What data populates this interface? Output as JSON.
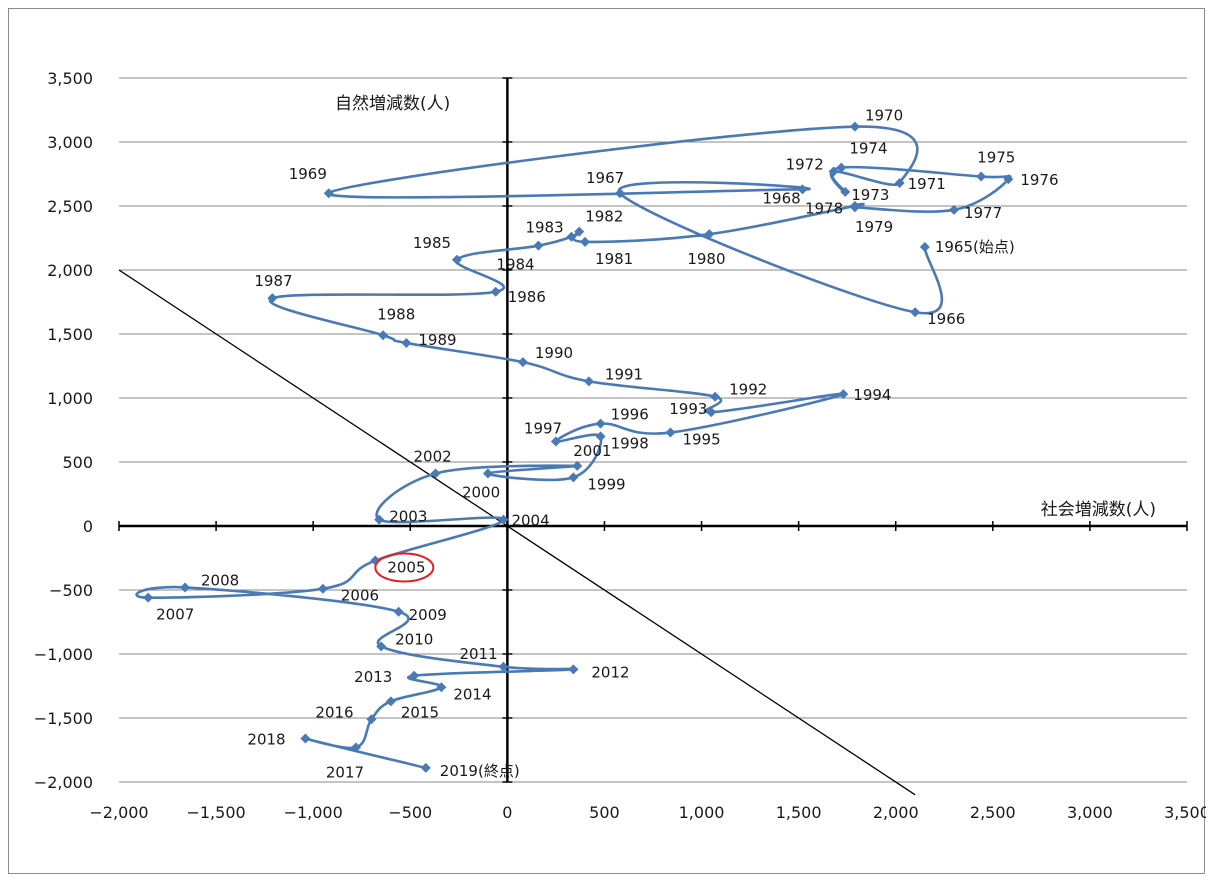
{
  "chart_data": {
    "type": "line",
    "xlabel": "社会増減数(人)",
    "ylabel": "自然増減数(人)",
    "xlim": [
      -2000,
      3500
    ],
    "ylim": [
      -2000,
      3500
    ],
    "x_ticks": [
      "−2,000",
      "−1,500",
      "−1,000",
      "−500",
      "0",
      "500",
      "1,000",
      "1,500",
      "2,000",
      "2,500",
      "3,000",
      "3,500"
    ],
    "y_ticks": [
      "3,500",
      "3,000",
      "2,500",
      "2,000",
      "1,500",
      "1,000",
      "500",
      "0",
      "−500",
      "−1,000",
      "−1,500",
      "−2,000"
    ],
    "grid": "horizontal",
    "line_color": "#4a7ab5",
    "reference_line": {
      "from": [
        -2000,
        2000
      ],
      "to": [
        2100,
        -2100
      ],
      "color": "#000000"
    },
    "highlight": {
      "label": "2005",
      "color": "#e02020"
    },
    "points": [
      {
        "label": "1965(始点)",
        "x": 2150,
        "y": 2180
      },
      {
        "label": "1966",
        "x": 2100,
        "y": 1670
      },
      {
        "label": "1967",
        "x": 580,
        "y": 2600
      },
      {
        "label": "1968",
        "x": 1520,
        "y": 2630
      },
      {
        "label": "1969",
        "x": -920,
        "y": 2600
      },
      {
        "label": "1970",
        "x": 1790,
        "y": 3120
      },
      {
        "label": "1971",
        "x": 2020,
        "y": 2680
      },
      {
        "label": "1972",
        "x": 1680,
        "y": 2770
      },
      {
        "label": "1973",
        "x": 1740,
        "y": 2610
      },
      {
        "label": "1974",
        "x": 1720,
        "y": 2800
      },
      {
        "label": "1975",
        "x": 2440,
        "y": 2730
      },
      {
        "label": "1976",
        "x": 2580,
        "y": 2710
      },
      {
        "label": "1977",
        "x": 2300,
        "y": 2470
      },
      {
        "label": "1978",
        "x": 1790,
        "y": 2490
      },
      {
        "label": "1979",
        "x": 1790,
        "y": 2500
      },
      {
        "label": "1980",
        "x": 1040,
        "y": 2280
      },
      {
        "label": "1981",
        "x": 400,
        "y": 2220
      },
      {
        "label": "1982",
        "x": 370,
        "y": 2300
      },
      {
        "label": "1983",
        "x": 330,
        "y": 2260
      },
      {
        "label": "1984",
        "x": 160,
        "y": 2190
      },
      {
        "label": "1985",
        "x": -260,
        "y": 2080
      },
      {
        "label": "1986",
        "x": -60,
        "y": 1830
      },
      {
        "label": "1987",
        "x": -1210,
        "y": 1780
      },
      {
        "label": "1988",
        "x": -640,
        "y": 1490
      },
      {
        "label": "1989",
        "x": -520,
        "y": 1430
      },
      {
        "label": "1990",
        "x": 80,
        "y": 1280
      },
      {
        "label": "1991",
        "x": 420,
        "y": 1130
      },
      {
        "label": "1992",
        "x": 1070,
        "y": 1010
      },
      {
        "label": "1993",
        "x": 1050,
        "y": 890
      },
      {
        "label": "1994",
        "x": 1730,
        "y": 1030
      },
      {
        "label": "1995",
        "x": 840,
        "y": 730
      },
      {
        "label": "1996",
        "x": 480,
        "y": 800
      },
      {
        "label": "1997",
        "x": 250,
        "y": 660
      },
      {
        "label": "1998",
        "x": 480,
        "y": 700
      },
      {
        "label": "1999",
        "x": 340,
        "y": 380
      },
      {
        "label": "2000",
        "x": -100,
        "y": 410
      },
      {
        "label": "2001",
        "x": 360,
        "y": 470
      },
      {
        "label": "2002",
        "x": -370,
        "y": 410
      },
      {
        "label": "2003",
        "x": -660,
        "y": 50
      },
      {
        "label": "2004",
        "x": -20,
        "y": 50
      },
      {
        "label": "2005",
        "x": -680,
        "y": -270
      },
      {
        "label": "2006",
        "x": -950,
        "y": -490
      },
      {
        "label": "2007",
        "x": -1850,
        "y": -560
      },
      {
        "label": "2008",
        "x": -1660,
        "y": -480
      },
      {
        "label": "2009",
        "x": -560,
        "y": -670
      },
      {
        "label": "2010",
        "x": -650,
        "y": -940
      },
      {
        "label": "2011",
        "x": -20,
        "y": -1100
      },
      {
        "label": "2012",
        "x": 340,
        "y": -1120
      },
      {
        "label": "2013",
        "x": -480,
        "y": -1170
      },
      {
        "label": "2014",
        "x": -340,
        "y": -1260
      },
      {
        "label": "2015",
        "x": -600,
        "y": -1370
      },
      {
        "label": "2016",
        "x": -700,
        "y": -1510
      },
      {
        "label": "2017",
        "x": -780,
        "y": -1730
      },
      {
        "label": "2018",
        "x": -1040,
        "y": -1660
      },
      {
        "label": "2019(終点)",
        "x": -420,
        "y": -1890
      }
    ]
  }
}
